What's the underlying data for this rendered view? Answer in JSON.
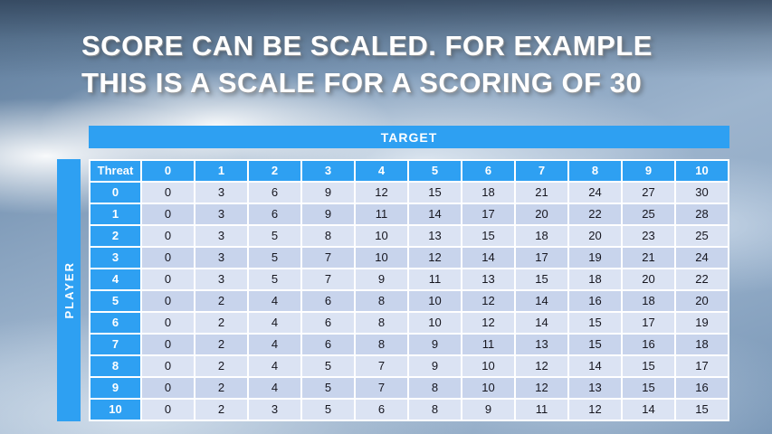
{
  "slide": {
    "title_line1": "SCORE CAN BE SCALED. FOR EXAMPLE",
    "title_line2": "THIS IS A SCALE FOR A SCORING OF 30"
  },
  "table": {
    "target_label": "TARGET",
    "player_label": "PLAYER",
    "corner_label": "Threat",
    "col_headers": [
      "0",
      "1",
      "2",
      "3",
      "4",
      "5",
      "6",
      "7",
      "8",
      "9",
      "10"
    ],
    "rows": [
      {
        "header": "0",
        "values": [
          0,
          3,
          6,
          9,
          12,
          15,
          18,
          21,
          24,
          27,
          30
        ]
      },
      {
        "header": "1",
        "values": [
          0,
          3,
          6,
          9,
          11,
          14,
          17,
          20,
          22,
          25,
          28
        ]
      },
      {
        "header": "2",
        "values": [
          0,
          3,
          5,
          8,
          10,
          13,
          15,
          18,
          20,
          23,
          25
        ]
      },
      {
        "header": "3",
        "values": [
          0,
          3,
          5,
          7,
          10,
          12,
          14,
          17,
          19,
          21,
          24
        ]
      },
      {
        "header": "4",
        "values": [
          0,
          3,
          5,
          7,
          9,
          11,
          13,
          15,
          18,
          20,
          22
        ]
      },
      {
        "header": "5",
        "values": [
          0,
          2,
          4,
          6,
          8,
          10,
          12,
          14,
          16,
          18,
          20
        ]
      },
      {
        "header": "6",
        "values": [
          0,
          2,
          4,
          6,
          8,
          10,
          12,
          14,
          15,
          17,
          19
        ]
      },
      {
        "header": "7",
        "values": [
          0,
          2,
          4,
          6,
          8,
          9,
          11,
          13,
          15,
          16,
          18
        ]
      },
      {
        "header": "8",
        "values": [
          0,
          2,
          4,
          5,
          7,
          9,
          10,
          12,
          14,
          15,
          17
        ]
      },
      {
        "header": "9",
        "values": [
          0,
          2,
          4,
          5,
          7,
          8,
          10,
          12,
          13,
          15,
          16
        ]
      },
      {
        "header": "10",
        "values": [
          0,
          2,
          3,
          5,
          6,
          8,
          9,
          11,
          12,
          14,
          15
        ]
      }
    ]
  },
  "colors": {
    "header_blue": "#2ea0f2",
    "band_light": "#dbe3f3",
    "band_dark": "#c8d4ec",
    "title_color": "#ffffff"
  }
}
